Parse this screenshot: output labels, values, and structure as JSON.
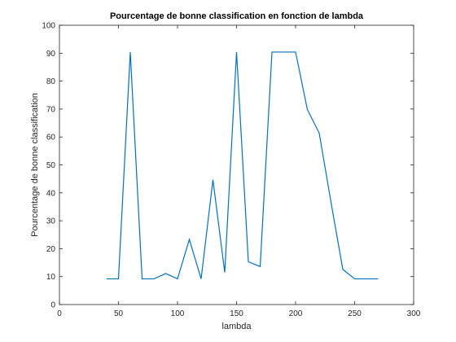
{
  "chart_data": {
    "type": "line",
    "title": "Pourcentage de bonne classification en fonction de lambda",
    "xlabel": "lambda",
    "ylabel": "Pourcentage de bonne classification",
    "xlim": [
      0,
      300
    ],
    "ylim": [
      0,
      100
    ],
    "xticks": [
      0,
      50,
      100,
      150,
      200,
      250,
      300
    ],
    "yticks": [
      0,
      10,
      20,
      30,
      40,
      50,
      60,
      70,
      80,
      90,
      100
    ],
    "grid": false,
    "series": [
      {
        "color": "#0072bd",
        "x": [
          40,
          50,
          60,
          70,
          80,
          90,
          100,
          110,
          120,
          130,
          140,
          150,
          160,
          170,
          180,
          190,
          200,
          210,
          220,
          230,
          240,
          250,
          260,
          270
        ],
        "y": [
          9.2,
          9.2,
          90.4,
          9.2,
          9.2,
          11.1,
          9.2,
          23.3,
          9.2,
          44.7,
          11.5,
          90.4,
          15.3,
          13.6,
          90.4,
          90.4,
          90.4,
          69.8,
          61.4,
          36.6,
          12.6,
          9.2,
          9.2,
          9.2
        ]
      }
    ]
  }
}
